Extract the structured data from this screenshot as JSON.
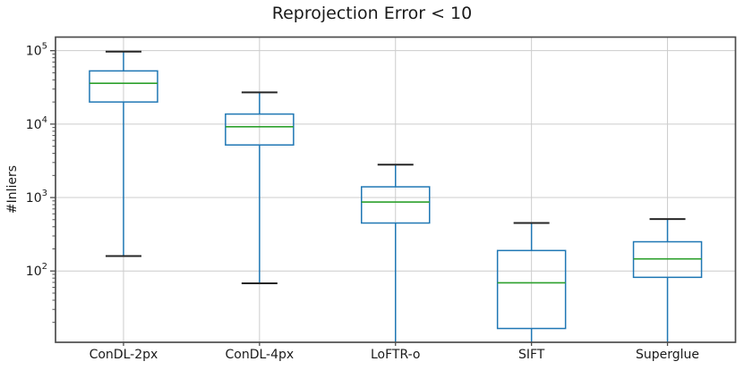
{
  "chart_data": {
    "type": "boxplot",
    "title": "Reprojection Error < 10",
    "ylabel": "#Inliers",
    "xlabel": "",
    "y_scale": "log",
    "ylim": [
      10.7,
      153000
    ],
    "y_major_tick_exponents": [
      2,
      3,
      4,
      5
    ],
    "grid": true,
    "legend": "none",
    "categories": [
      "ConDL-2px",
      "ConDL-4px",
      "LoFTR-o",
      "SIFT",
      "Superglue"
    ],
    "boxes": [
      {
        "category": "ConDL-2px",
        "whisker_low": 160,
        "q1": 20000,
        "median": 36000,
        "q3": 53000,
        "whisker_high": 97000,
        "whisker_low_clipped": false
      },
      {
        "category": "ConDL-4px",
        "whisker_low": 68,
        "q1": 5200,
        "median": 9200,
        "q3": 13700,
        "whisker_high": 27000,
        "whisker_low_clipped": false
      },
      {
        "category": "LoFTR-o",
        "whisker_low": null,
        "q1": 450,
        "median": 870,
        "q3": 1400,
        "whisker_high": 2800,
        "whisker_low_clipped": true
      },
      {
        "category": "SIFT",
        "whisker_low": null,
        "q1": 16.5,
        "median": 69,
        "q3": 190,
        "whisker_high": 450,
        "whisker_low_clipped": true
      },
      {
        "category": "Superglue",
        "whisker_low": null,
        "q1": 82,
        "median": 146,
        "q3": 250,
        "whisker_high": 510,
        "whisker_low_clipped": true
      }
    ],
    "colors": {
      "box": "#1f77b4",
      "median": "#2ca02c",
      "cap": "#262626",
      "grid": "#cccccc",
      "spine": "#4d4d4d",
      "text": "#1a1a1a",
      "background": "#ffffff"
    }
  }
}
